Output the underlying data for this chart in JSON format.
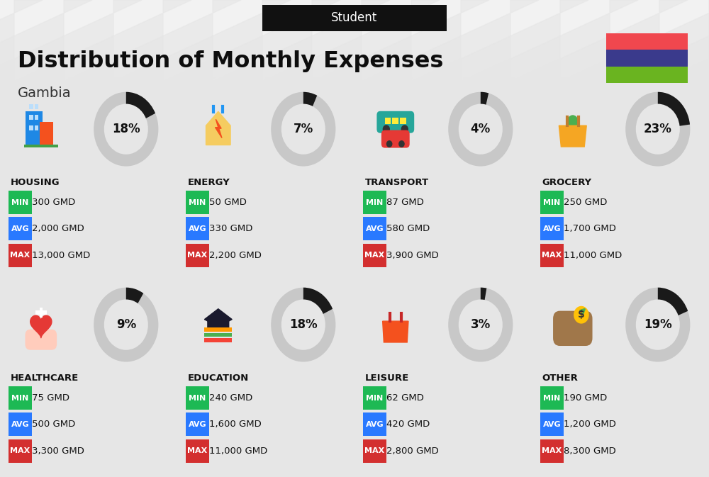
{
  "title": "Distribution of Monthly Expenses",
  "subtitle": "Student",
  "country": "Gambia",
  "background_color": "#f2f2f2",
  "flag_colors": [
    "#f0474e",
    "#3a3a8c",
    "#6ab420"
  ],
  "categories": [
    {
      "name": "HOUSING",
      "percent": 18,
      "min": "300 GMD",
      "avg": "2,000 GMD",
      "max": "13,000 GMD",
      "row": 0,
      "col": 0
    },
    {
      "name": "ENERGY",
      "percent": 7,
      "min": "50 GMD",
      "avg": "330 GMD",
      "max": "2,200 GMD",
      "row": 0,
      "col": 1
    },
    {
      "name": "TRANSPORT",
      "percent": 4,
      "min": "87 GMD",
      "avg": "580 GMD",
      "max": "3,900 GMD",
      "row": 0,
      "col": 2
    },
    {
      "name": "GROCERY",
      "percent": 23,
      "min": "250 GMD",
      "avg": "1,700 GMD",
      "max": "11,000 GMD",
      "row": 0,
      "col": 3
    },
    {
      "name": "HEALTHCARE",
      "percent": 9,
      "min": "75 GMD",
      "avg": "500 GMD",
      "max": "3,300 GMD",
      "row": 1,
      "col": 0
    },
    {
      "name": "EDUCATION",
      "percent": 18,
      "min": "240 GMD",
      "avg": "1,600 GMD",
      "max": "11,000 GMD",
      "row": 1,
      "col": 1
    },
    {
      "name": "LEISURE",
      "percent": 3,
      "min": "62 GMD",
      "avg": "420 GMD",
      "max": "2,800 GMD",
      "row": 1,
      "col": 2
    },
    {
      "name": "OTHER",
      "percent": 19,
      "min": "190 GMD",
      "avg": "1,200 GMD",
      "max": "8,300 GMD",
      "row": 1,
      "col": 3
    }
  ],
  "min_color": "#1db954",
  "avg_color": "#2979ff",
  "max_color": "#d32f2f",
  "donut_dark": "#1a1a1a",
  "donut_light": "#c8c8c8",
  "stripe_color": "#e6e6e6",
  "banner_bg": "#111111",
  "banner_text": "#ffffff",
  "title_color": "#0d0d0d",
  "country_color": "#333333",
  "cat_name_color": "#111111",
  "val_color": "#111111"
}
